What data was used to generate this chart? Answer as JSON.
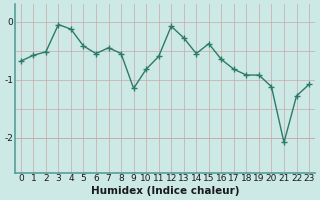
{
  "x": [
    0,
    1,
    2,
    3,
    4,
    5,
    6,
    7,
    8,
    9,
    10,
    11,
    12,
    13,
    14,
    15,
    16,
    17,
    18,
    19,
    20,
    21,
    22,
    23
  ],
  "y": [
    -0.68,
    -0.58,
    -0.52,
    -0.05,
    -0.13,
    -0.42,
    -0.55,
    -0.45,
    -0.55,
    -1.15,
    -0.82,
    -0.6,
    -0.08,
    -0.28,
    -0.55,
    -0.38,
    -0.65,
    -0.82,
    -0.92,
    -0.92,
    -1.12,
    -2.08,
    -1.28,
    -1.08
  ],
  "line_color": "#2d7a66",
  "marker": "+",
  "marker_size": 4,
  "marker_linewidth": 1.0,
  "bg_color": "#cce9e5",
  "plot_bg_color": "#cce9e5",
  "bottom_bar_color": "#5a9e96",
  "vgrid_color": "#c8a8a8",
  "hgrid_color": "#c8a8a8",
  "spine_color": "#5a9e96",
  "xlabel": "Humidex (Indice chaleur)",
  "xlim": [
    -0.5,
    23.5
  ],
  "ylim": [
    -2.6,
    0.3
  ],
  "yticks": [
    0,
    -1,
    -2
  ],
  "xlabel_fontsize": 7.5,
  "tick_fontsize": 6.5,
  "line_width": 1.0
}
